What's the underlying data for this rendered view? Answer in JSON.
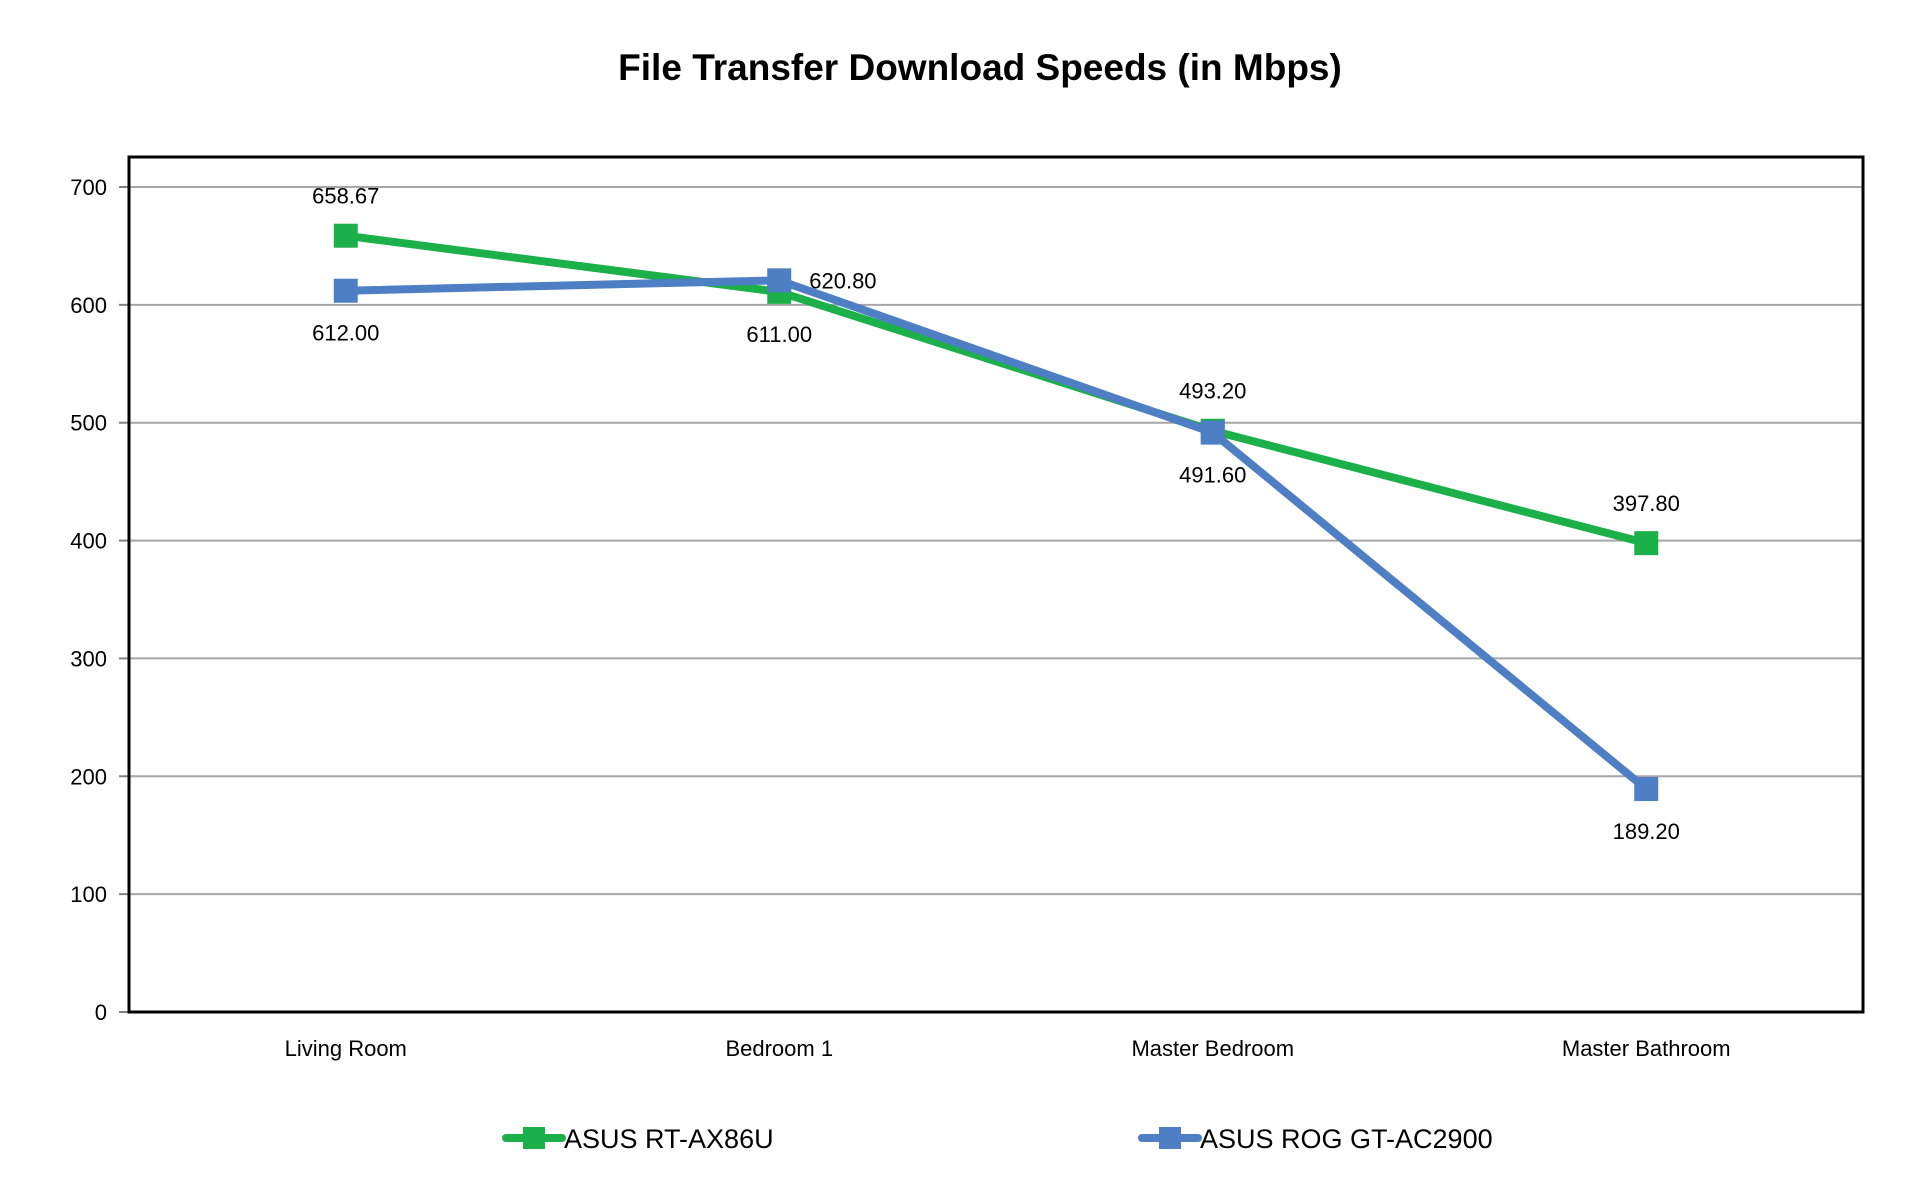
{
  "chart_data": {
    "type": "line",
    "title": "File Transfer Download Speeds (in Mbps)",
    "xlabel": "",
    "ylabel": "",
    "categories": [
      "Living Room",
      "Bedroom 1",
      "Master Bedroom",
      "Master Bathroom"
    ],
    "ylim": [
      0,
      700
    ],
    "yticks": [
      0,
      100,
      200,
      300,
      400,
      500,
      600,
      700
    ],
    "grid": true,
    "legend_position": "bottom",
    "series": [
      {
        "name": "ASUS RT-AX86U",
        "color": "#1CB04B",
        "marker": "square",
        "values": [
          658.67,
          611.0,
          493.2,
          397.8
        ],
        "labels": [
          "658.67",
          "611.00",
          "493.20",
          "397.80"
        ],
        "label_positions": [
          "above",
          "below",
          "above",
          "above"
        ]
      },
      {
        "name": "ASUS ROG GT-AC2900",
        "color": "#4E7EC4",
        "marker": "square",
        "values": [
          612.0,
          620.8,
          491.6,
          189.2
        ],
        "labels": [
          "612.00",
          "620.80",
          "491.60",
          "189.20"
        ],
        "label_positions": [
          "below",
          "right",
          "below",
          "below"
        ]
      }
    ]
  }
}
